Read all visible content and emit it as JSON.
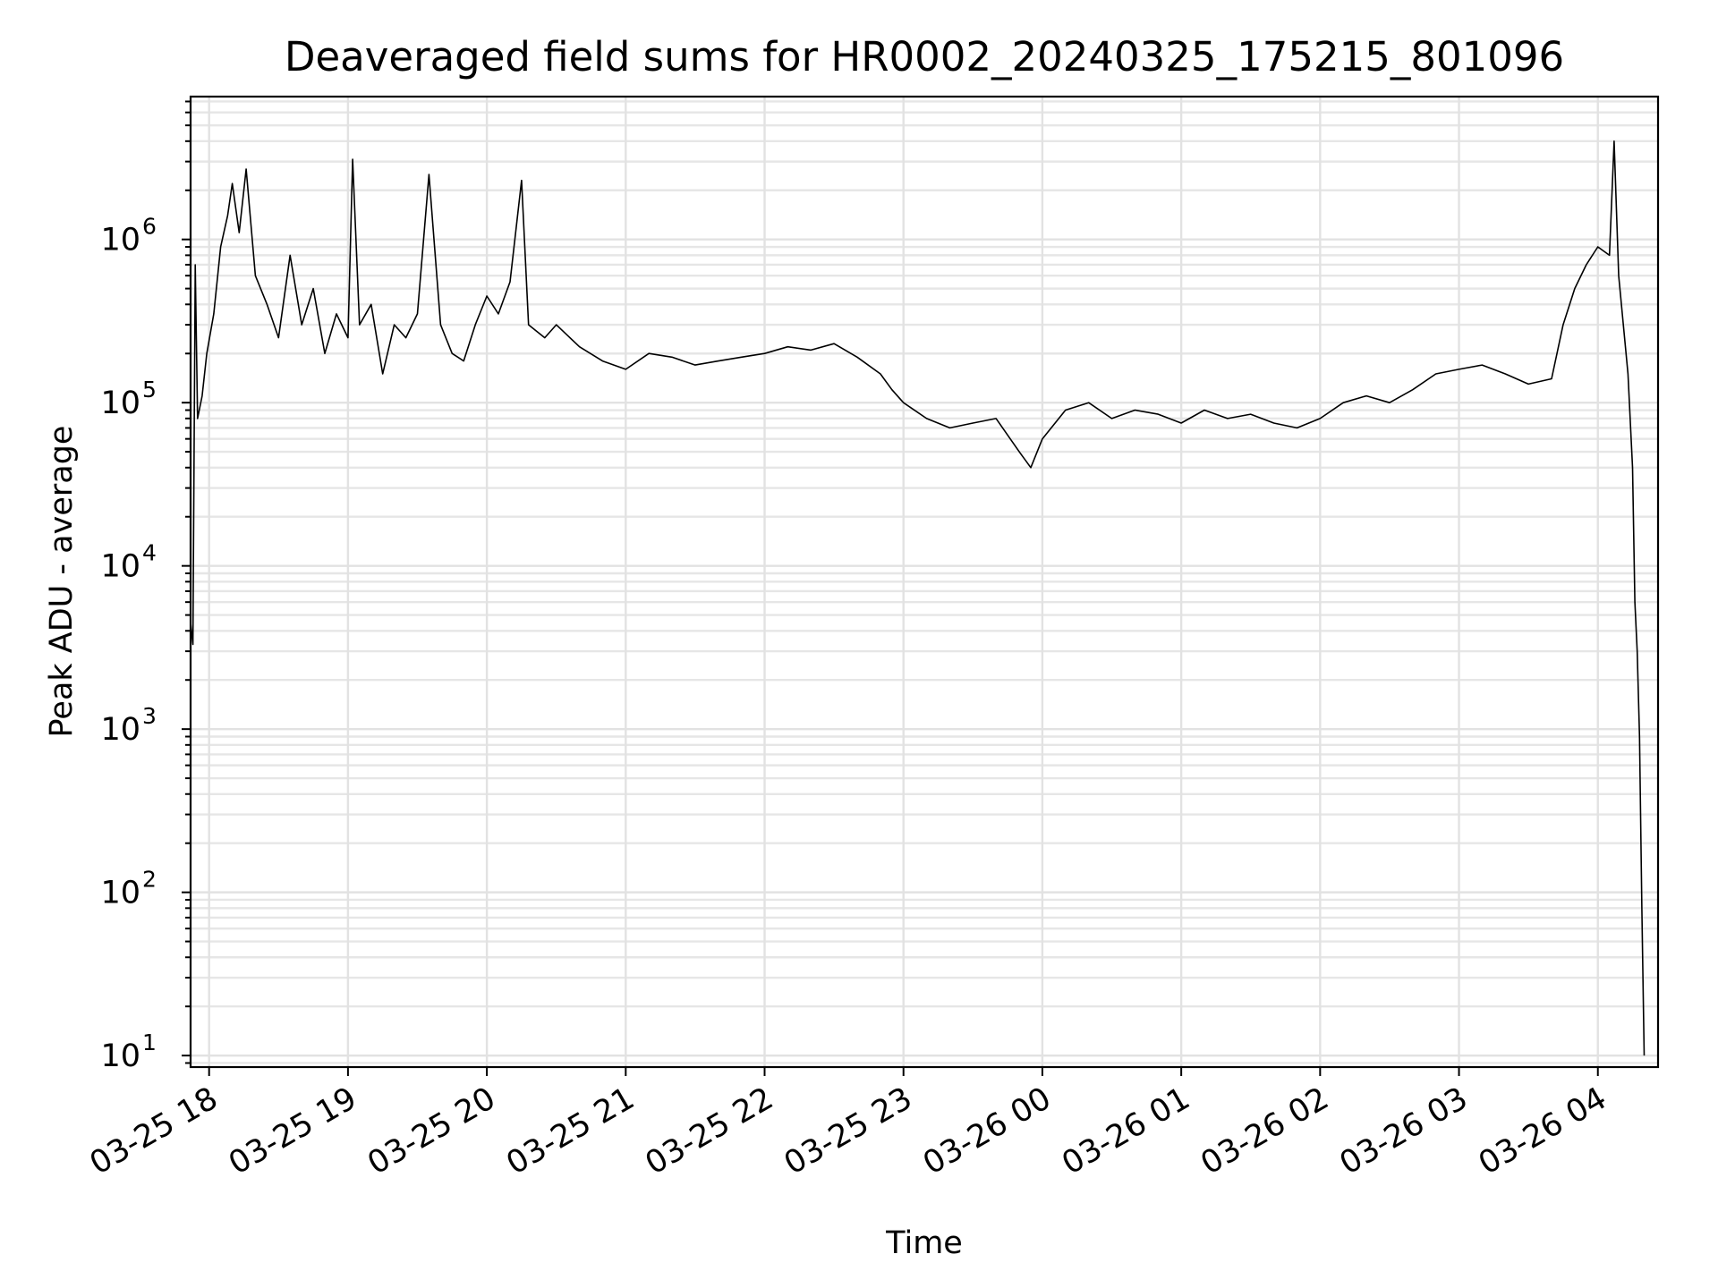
{
  "chart_data": {
    "type": "line",
    "title": "Deaveraged field sums for HR0002_20240325_175215_801096",
    "xlabel": "Time",
    "ylabel": "Peak ADU - average",
    "yscale": "log",
    "ylim": [
      8.5,
      7500000
    ],
    "xlim": [
      "2024-03-25T17:52",
      "2024-03-26T04:26"
    ],
    "grid": "major and minor, both axes",
    "x_ticks": [
      {
        "t": "2024-03-25T18:00",
        "label": "03-25 18"
      },
      {
        "t": "2024-03-25T19:00",
        "label": "03-25 19"
      },
      {
        "t": "2024-03-25T20:00",
        "label": "03-25 20"
      },
      {
        "t": "2024-03-25T21:00",
        "label": "03-25 21"
      },
      {
        "t": "2024-03-25T22:00",
        "label": "03-25 22"
      },
      {
        "t": "2024-03-25T23:00",
        "label": "03-25 23"
      },
      {
        "t": "2024-03-26T00:00",
        "label": "03-26 00"
      },
      {
        "t": "2024-03-26T01:00",
        "label": "03-26 01"
      },
      {
        "t": "2024-03-26T02:00",
        "label": "03-26 02"
      },
      {
        "t": "2024-03-26T03:00",
        "label": "03-26 03"
      },
      {
        "t": "2024-03-26T04:00",
        "label": "03-26 04"
      }
    ],
    "y_ticks": [
      {
        "value": 10,
        "base": "10",
        "exp": "1"
      },
      {
        "value": 100,
        "base": "10",
        "exp": "2"
      },
      {
        "value": 1000,
        "base": "10",
        "exp": "3"
      },
      {
        "value": 10000,
        "base": "10",
        "exp": "4"
      },
      {
        "value": 100000,
        "base": "10",
        "exp": "5"
      },
      {
        "value": 1000000,
        "base": "10",
        "exp": "6"
      }
    ],
    "series": [
      {
        "color": "#000000",
        "points": [
          [
            "2024-03-25T17:52",
            4500
          ],
          [
            "2024-03-25T17:53",
            3300
          ],
          [
            "2024-03-25T17:54",
            700000
          ],
          [
            "2024-03-25T17:55",
            80000
          ],
          [
            "2024-03-25T17:57",
            110000
          ],
          [
            "2024-03-25T17:59",
            200000
          ],
          [
            "2024-03-25T18:02",
            350000
          ],
          [
            "2024-03-25T18:05",
            900000
          ],
          [
            "2024-03-25T18:08",
            1400000
          ],
          [
            "2024-03-25T18:10",
            2200000
          ],
          [
            "2024-03-25T18:13",
            1100000
          ],
          [
            "2024-03-25T18:16",
            2700000
          ],
          [
            "2024-03-25T18:20",
            600000
          ],
          [
            "2024-03-25T18:25",
            400000
          ],
          [
            "2024-03-25T18:30",
            250000
          ],
          [
            "2024-03-25T18:35",
            800000
          ],
          [
            "2024-03-25T18:40",
            300000
          ],
          [
            "2024-03-25T18:45",
            500000
          ],
          [
            "2024-03-25T18:50",
            200000
          ],
          [
            "2024-03-25T18:55",
            350000
          ],
          [
            "2024-03-25T19:00",
            250000
          ],
          [
            "2024-03-25T19:02",
            3100000
          ],
          [
            "2024-03-25T19:05",
            300000
          ],
          [
            "2024-03-25T19:10",
            400000
          ],
          [
            "2024-03-25T19:15",
            150000
          ],
          [
            "2024-03-25T19:20",
            300000
          ],
          [
            "2024-03-25T19:25",
            250000
          ],
          [
            "2024-03-25T19:30",
            350000
          ],
          [
            "2024-03-25T19:35",
            2500000
          ],
          [
            "2024-03-25T19:40",
            300000
          ],
          [
            "2024-03-25T19:45",
            200000
          ],
          [
            "2024-03-25T19:50",
            180000
          ],
          [
            "2024-03-25T19:55",
            300000
          ],
          [
            "2024-03-25T20:00",
            450000
          ],
          [
            "2024-03-25T20:05",
            350000
          ],
          [
            "2024-03-25T20:10",
            550000
          ],
          [
            "2024-03-25T20:15",
            2300000
          ],
          [
            "2024-03-25T20:18",
            300000
          ],
          [
            "2024-03-25T20:25",
            250000
          ],
          [
            "2024-03-25T20:30",
            300000
          ],
          [
            "2024-03-25T20:40",
            220000
          ],
          [
            "2024-03-25T20:50",
            180000
          ],
          [
            "2024-03-25T21:00",
            160000
          ],
          [
            "2024-03-25T21:10",
            200000
          ],
          [
            "2024-03-25T21:20",
            190000
          ],
          [
            "2024-03-25T21:30",
            170000
          ],
          [
            "2024-03-25T21:40",
            180000
          ],
          [
            "2024-03-25T21:50",
            190000
          ],
          [
            "2024-03-25T22:00",
            200000
          ],
          [
            "2024-03-25T22:10",
            220000
          ],
          [
            "2024-03-25T22:20",
            210000
          ],
          [
            "2024-03-25T22:30",
            230000
          ],
          [
            "2024-03-25T22:40",
            190000
          ],
          [
            "2024-03-25T22:50",
            150000
          ],
          [
            "2024-03-25T22:55",
            120000
          ],
          [
            "2024-03-25T23:00",
            100000
          ],
          [
            "2024-03-25T23:10",
            80000
          ],
          [
            "2024-03-25T23:20",
            70000
          ],
          [
            "2024-03-25T23:30",
            75000
          ],
          [
            "2024-03-25T23:40",
            80000
          ],
          [
            "2024-03-25T23:50",
            50000
          ],
          [
            "2024-03-25T23:55",
            40000
          ],
          [
            "2024-03-26T00:00",
            60000
          ],
          [
            "2024-03-26T00:10",
            90000
          ],
          [
            "2024-03-26T00:20",
            100000
          ],
          [
            "2024-03-26T00:30",
            80000
          ],
          [
            "2024-03-26T00:40",
            90000
          ],
          [
            "2024-03-26T00:50",
            85000
          ],
          [
            "2024-03-26T01:00",
            75000
          ],
          [
            "2024-03-26T01:10",
            90000
          ],
          [
            "2024-03-26T01:20",
            80000
          ],
          [
            "2024-03-26T01:30",
            85000
          ],
          [
            "2024-03-26T01:40",
            75000
          ],
          [
            "2024-03-26T01:50",
            70000
          ],
          [
            "2024-03-26T02:00",
            80000
          ],
          [
            "2024-03-26T02:10",
            100000
          ],
          [
            "2024-03-26T02:20",
            110000
          ],
          [
            "2024-03-26T02:30",
            100000
          ],
          [
            "2024-03-26T02:40",
            120000
          ],
          [
            "2024-03-26T02:50",
            150000
          ],
          [
            "2024-03-26T03:00",
            160000
          ],
          [
            "2024-03-26T03:10",
            170000
          ],
          [
            "2024-03-26T03:20",
            150000
          ],
          [
            "2024-03-26T03:30",
            130000
          ],
          [
            "2024-03-26T03:40",
            140000
          ],
          [
            "2024-03-26T03:45",
            300000
          ],
          [
            "2024-03-26T03:50",
            500000
          ],
          [
            "2024-03-26T03:55",
            700000
          ],
          [
            "2024-03-26T04:00",
            900000
          ],
          [
            "2024-03-26T04:05",
            800000
          ],
          [
            "2024-03-26T04:07",
            4000000
          ],
          [
            "2024-03-26T04:09",
            600000
          ],
          [
            "2024-03-26T04:11",
            300000
          ],
          [
            "2024-03-26T04:13",
            150000
          ],
          [
            "2024-03-26T04:15",
            40000
          ],
          [
            "2024-03-26T04:16",
            6000
          ],
          [
            "2024-03-26T04:17",
            3000
          ],
          [
            "2024-03-26T04:18",
            900
          ],
          [
            "2024-03-26T04:19",
            80
          ],
          [
            "2024-03-26T04:20",
            10
          ]
        ]
      }
    ]
  }
}
